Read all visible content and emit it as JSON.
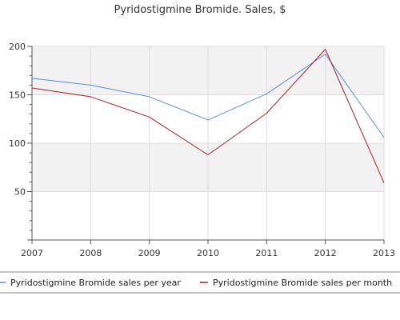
{
  "chart_data": {
    "type": "line",
    "title": "Pyridostigmine Bromide. Sales, $",
    "xlabel": "",
    "ylabel": "",
    "x": [
      2007,
      2008,
      2009,
      2010,
      2011,
      2012,
      2013
    ],
    "x_tick_labels": [
      "2007",
      "2008",
      "2009",
      "2010",
      "2011",
      "2012",
      "2013"
    ],
    "ylim": [
      0,
      200
    ],
    "y_ticks": [
      50,
      100,
      150,
      200
    ],
    "y_tick_labels": [
      "50",
      "100",
      "150",
      "200"
    ],
    "grid": true,
    "legend_position": "bottom",
    "series": [
      {
        "name": "Pyridostigmine Bromide sales per year",
        "color": "#5b8fd6",
        "values": [
          167,
          160,
          148,
          124,
          151,
          192,
          106
        ]
      },
      {
        "name": "Pyridostigmine Bromide sales per month",
        "color": "#b01c1c",
        "values": [
          157,
          148,
          127,
          88,
          131,
          197,
          59
        ]
      }
    ]
  }
}
